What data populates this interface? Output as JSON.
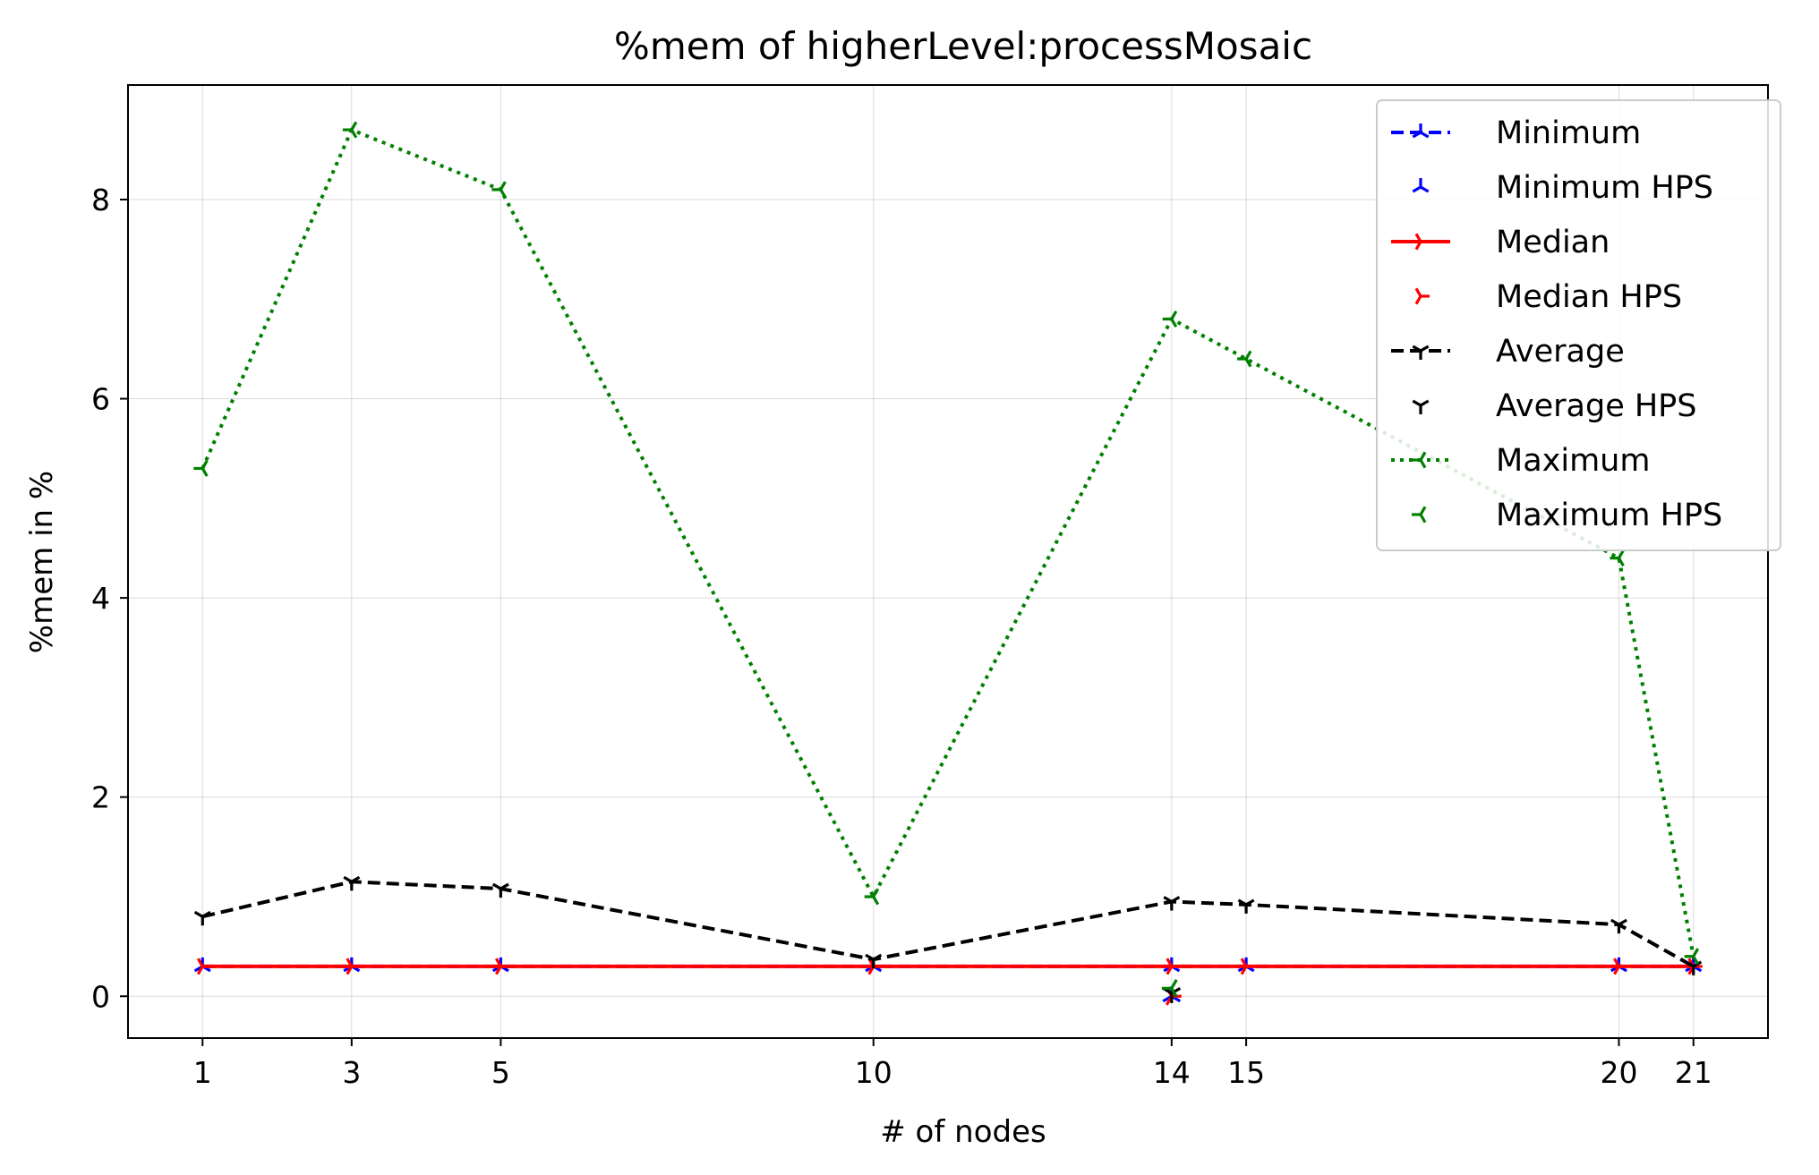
{
  "chart_data": {
    "type": "line",
    "title": "%mem of higherLevel:processMosaic",
    "xlabel": "# of nodes",
    "ylabel": "%mem in %",
    "x": [
      1,
      3,
      5,
      10,
      14,
      15,
      20,
      21
    ],
    "x_ticks": [
      "1",
      "3",
      "5",
      "10",
      "14",
      "15",
      "20",
      "21"
    ],
    "y_ticks": [
      "0",
      "2",
      "4",
      "6",
      "8"
    ],
    "xlim": [
      0,
      22
    ],
    "ylim": [
      -0.42,
      9.15
    ],
    "grid": true,
    "legend_position": "top-right",
    "series": [
      {
        "name": "Minimum",
        "color": "#0000ff",
        "linestyle": "dashed",
        "marker": "tri-up",
        "values": [
          0.3,
          0.3,
          0.3,
          0.3,
          0.3,
          0.3,
          0.3,
          0.3
        ]
      },
      {
        "name": "Median",
        "color": "#ff0000",
        "linestyle": "solid",
        "marker": "tri-right",
        "values": [
          0.3,
          0.3,
          0.3,
          0.3,
          0.3,
          0.3,
          0.3,
          0.3
        ]
      },
      {
        "name": "Average",
        "color": "#000000",
        "linestyle": "dashed",
        "marker": "tri-down",
        "values": [
          0.8,
          1.15,
          1.08,
          0.37,
          0.95,
          0.92,
          0.72,
          0.3
        ]
      },
      {
        "name": "Maximum",
        "color": "#008000",
        "linestyle": "dotted",
        "marker": "tri-left",
        "values": [
          5.3,
          8.7,
          8.1,
          1.0,
          6.8,
          6.4,
          4.4,
          0.4
        ]
      }
    ],
    "hps_series": [
      {
        "name": "Minimum HPS",
        "color": "#0000ff",
        "marker": "tri-up",
        "points": [
          [
            14,
            0.0
          ]
        ]
      },
      {
        "name": "Median HPS",
        "color": "#ff0000",
        "marker": "tri-right",
        "points": [
          [
            14,
            0.0
          ]
        ]
      },
      {
        "name": "Average HPS",
        "color": "#000000",
        "marker": "tri-down",
        "points": [
          [
            14,
            0.03
          ]
        ]
      },
      {
        "name": "Maximum HPS",
        "color": "#008000",
        "marker": "tri-left",
        "points": [
          [
            14,
            0.08
          ]
        ]
      }
    ],
    "legend": [
      {
        "label": "Minimum",
        "color": "#0000ff",
        "linestyle": "dashed",
        "marker": "tri-up"
      },
      {
        "label": "Minimum HPS",
        "color": "#0000ff",
        "linestyle": "none",
        "marker": "tri-up"
      },
      {
        "label": "Median",
        "color": "#ff0000",
        "linestyle": "solid",
        "marker": "tri-right"
      },
      {
        "label": "Median HPS",
        "color": "#ff0000",
        "linestyle": "none",
        "marker": "tri-right"
      },
      {
        "label": "Average",
        "color": "#000000",
        "linestyle": "dashed",
        "marker": "tri-down"
      },
      {
        "label": "Average HPS",
        "color": "#000000",
        "linestyle": "none",
        "marker": "tri-down"
      },
      {
        "label": "Maximum",
        "color": "#008000",
        "linestyle": "dotted",
        "marker": "tri-left"
      },
      {
        "label": "Maximum HPS",
        "color": "#008000",
        "linestyle": "none",
        "marker": "tri-left"
      }
    ]
  }
}
